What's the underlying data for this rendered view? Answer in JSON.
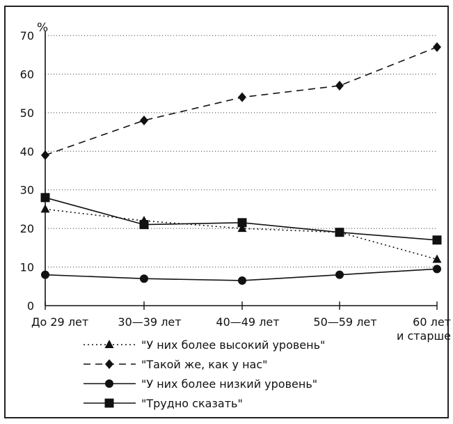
{
  "chart_data": {
    "type": "line",
    "unit_label": "%",
    "categories": [
      [
        "До 29 лет"
      ],
      [
        "30—39 лет"
      ],
      [
        "40—49 лет"
      ],
      [
        "50—59 лет"
      ],
      [
        "60 лет",
        "и старше"
      ]
    ],
    "y_ticks": [
      0,
      10,
      20,
      30,
      40,
      50,
      60,
      70
    ],
    "ylim": [
      0,
      70
    ],
    "grid": "horizontal dotted",
    "legend_position": "bottom",
    "series": [
      {
        "name": "\"У них более высокий уровень\"",
        "marker": "triangle",
        "dash": "dotted",
        "color": "#111111",
        "values": [
          25,
          22,
          20,
          19,
          12
        ]
      },
      {
        "name": "\"Такой же, как у нас\"",
        "marker": "diamond",
        "dash": "dashed",
        "color": "#111111",
        "values": [
          39,
          48,
          54,
          57,
          67
        ]
      },
      {
        "name": "\"У них более низкий уровень\"",
        "marker": "circle",
        "dash": "solid",
        "color": "#111111",
        "values": [
          8,
          7,
          6.5,
          8,
          9.5
        ]
      },
      {
        "name": "\"Трудно сказать\"",
        "marker": "square",
        "dash": "solid",
        "color": "#111111",
        "values": [
          28,
          21,
          21.5,
          19,
          17
        ]
      }
    ]
  }
}
